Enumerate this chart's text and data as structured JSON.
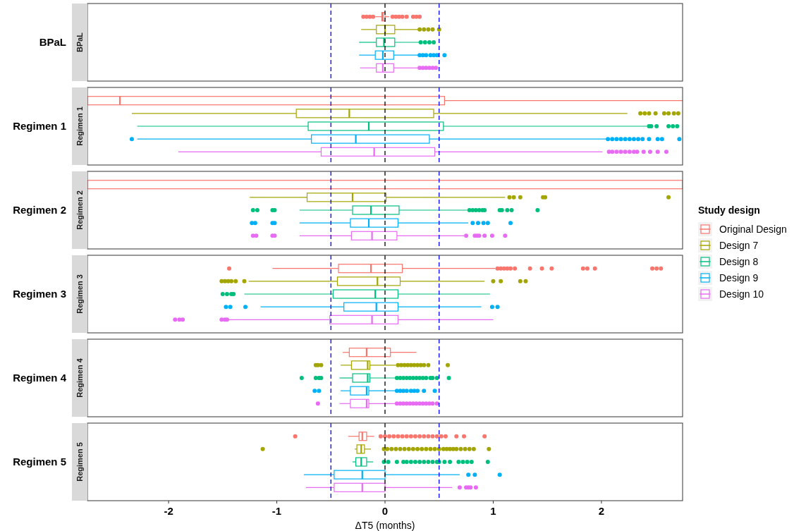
{
  "chart_data": [
    {
      "type": "box",
      "orientation": "horizontal",
      "title": "BPaL",
      "categories": [
        "BPaL"
      ],
      "xlim": [
        -2.75,
        2.75
      ],
      "tick_labels": "y",
      "grid": false,
      "ref_lines": [
        {
          "axis": "x",
          "value": -0.5,
          "color": "#0000ff",
          "line_style": "dashed"
        },
        {
          "axis": "x",
          "value": 0,
          "color": "#000000",
          "line_style": "dashed"
        },
        {
          "axis": "x",
          "value": 0.5,
          "color": "#0000ff",
          "line_style": "dashed"
        }
      ],
      "series": [
        {
          "color": "#f8766d",
          "boxes": [
            {
              "low": -0.09,
              "q1": -0.03,
              "median": -0.02,
              "q3": 0.0,
              "high": 0.04,
              "outliers": [
                -0.2,
                -0.17,
                -0.14,
                -0.11,
                0.07,
                0.1,
                0.13,
                0.16,
                0.2,
                0.26,
                0.29,
                0.32
              ]
            }
          ]
        },
        {
          "color": "#a3a500",
          "boxes": [
            {
              "low": -0.22,
              "q1": -0.08,
              "median": 0.0,
              "q3": 0.09,
              "high": 0.31,
              "outliers": [
                0.32,
                0.36,
                0.4,
                0.44,
                0.5
              ]
            }
          ]
        },
        {
          "color": "#00bf7d",
          "boxes": [
            {
              "low": -0.24,
              "q1": -0.08,
              "median": -0.01,
              "q3": 0.09,
              "high": 0.32,
              "outliers": [
                0.33,
                0.37,
                0.41,
                0.45
              ]
            }
          ]
        },
        {
          "color": "#00b0f6",
          "boxes": [
            {
              "low": -0.24,
              "q1": -0.09,
              "median": -0.02,
              "q3": 0.08,
              "high": 0.31,
              "outliers": [
                0.32,
                0.35,
                0.38,
                0.42,
                0.45,
                0.48,
                0.55
              ]
            }
          ]
        },
        {
          "color": "#e76bf3",
          "boxes": [
            {
              "low": -0.23,
              "q1": -0.08,
              "median": -0.02,
              "q3": 0.08,
              "high": 0.31,
              "outliers": [
                0.32,
                0.35,
                0.38,
                0.41,
                0.44,
                0.47
              ]
            }
          ]
        }
      ]
    },
    {
      "type": "box",
      "orientation": "horizontal",
      "title": "Regimen 1",
      "categories": [
        "Regimen 1"
      ],
      "xlim": [
        -2.75,
        2.75
      ],
      "tick_labels": "y",
      "grid": false,
      "ref_lines": [
        {
          "axis": "x",
          "value": -0.5,
          "color": "#0000ff",
          "line_style": "dashed"
        },
        {
          "axis": "x",
          "value": 0,
          "color": "#000000",
          "line_style": "dashed"
        },
        {
          "axis": "x",
          "value": 0.5,
          "color": "#0000ff",
          "line_style": "dashed"
        }
      ],
      "series": [
        {
          "color": "#f8766d",
          "boxes": [
            {
              "low": -2.75,
              "q1": -2.75,
              "median": -2.45,
              "q3": 0.55,
              "high": 2.75
            }
          ]
        },
        {
          "color": "#a3a500",
          "boxes": [
            {
              "low": -2.34,
              "q1": -0.82,
              "median": -0.33,
              "q3": 0.45,
              "high": 2.24,
              "outliers": [
                2.36,
                2.4,
                2.44,
                2.5,
                2.58,
                2.62,
                2.67,
                2.71
              ]
            }
          ]
        },
        {
          "color": "#00bf7d",
          "boxes": [
            {
              "low": -2.29,
              "q1": -0.71,
              "median": -0.15,
              "q3": 0.54,
              "high": 2.42,
              "outliers": [
                2.44,
                2.46,
                2.51,
                2.62,
                2.66,
                2.7
              ]
            }
          ]
        },
        {
          "color": "#00b0f6",
          "boxes": [
            {
              "low": -2.29,
              "q1": -0.68,
              "median": -0.27,
              "q3": 0.41,
              "high": 2.05,
              "outliers": [
                -2.34,
                2.06,
                2.1,
                2.14,
                2.18,
                2.22,
                2.26,
                2.3,
                2.34,
                2.38,
                2.44,
                2.52,
                2.56,
                2.72
              ]
            }
          ]
        },
        {
          "color": "#e76bf3",
          "boxes": [
            {
              "low": -1.91,
              "q1": -0.59,
              "median": -0.1,
              "q3": 0.46,
              "high": 2.01,
              "outliers": [
                2.07,
                2.1,
                2.14,
                2.18,
                2.22,
                2.26,
                2.3,
                2.33,
                2.39,
                2.45,
                2.52,
                2.6
              ]
            }
          ]
        }
      ]
    },
    {
      "type": "box",
      "orientation": "horizontal",
      "title": "Regimen 2",
      "categories": [
        "Regimen 2"
      ],
      "xlim": [
        -2.75,
        2.75
      ],
      "tick_labels": "y",
      "grid": false,
      "legend": "right",
      "legend_title": "Study design",
      "ref_lines": [
        {
          "axis": "x",
          "value": -0.5,
          "color": "#0000ff",
          "line_style": "dashed"
        },
        {
          "axis": "x",
          "value": 0,
          "color": "#000000",
          "line_style": "dashed"
        },
        {
          "axis": "x",
          "value": 0.5,
          "color": "#0000ff",
          "line_style": "dashed"
        }
      ],
      "series": [
        {
          "name": "Original Design",
          "color": "#f8766d",
          "boxes": [
            {
              "low": -2.75,
              "q1": -2.75,
              "median": null,
              "q3": 2.75,
              "high": 2.75
            }
          ]
        },
        {
          "name": "Design 7",
          "color": "#a3a500",
          "boxes": [
            {
              "low": -1.25,
              "q1": -0.72,
              "median": -0.3,
              "q3": 0.01,
              "high": 1.11,
              "outliers": [
                1.15,
                1.19,
                1.25,
                1.46,
                1.48,
                2.62
              ]
            }
          ]
        },
        {
          "name": "Design 8",
          "color": "#00bf7d",
          "boxes": [
            {
              "low": -0.79,
              "q1": -0.3,
              "median": -0.13,
              "q3": 0.13,
              "high": 0.76,
              "outliers": [
                -1.22,
                -1.18,
                -1.04,
                -1.02,
                0.78,
                0.81,
                0.84,
                0.87,
                0.9,
                0.92,
                1.06,
                1.08,
                1.13,
                1.17,
                1.41
              ]
            }
          ]
        },
        {
          "name": "Design 9",
          "color": "#00b0f6",
          "boxes": [
            {
              "low": -0.79,
              "q1": -0.32,
              "median": -0.15,
              "q3": 0.12,
              "high": 0.77,
              "outliers": [
                -1.23,
                -1.2,
                -1.04,
                -1.02,
                0.81,
                0.86,
                0.91,
                0.95,
                1.16
              ]
            }
          ]
        },
        {
          "name": "Design 10",
          "color": "#e76bf3",
          "boxes": [
            {
              "low": -0.79,
              "q1": -0.31,
              "median": -0.12,
              "q3": 0.11,
              "high": 0.73,
              "outliers": [
                -1.22,
                -1.19,
                -1.04,
                -1.02,
                0.75,
                0.83,
                0.85,
                0.87,
                0.92,
                0.99,
                1.11
              ]
            }
          ]
        }
      ]
    },
    {
      "type": "box",
      "orientation": "horizontal",
      "title": "Regimen 3",
      "categories": [
        "Regimen 3"
      ],
      "xlim": [
        -2.75,
        2.75
      ],
      "tick_labels": "y",
      "grid": false,
      "ref_lines": [
        {
          "axis": "x",
          "value": -0.5,
          "color": "#0000ff",
          "line_style": "dashed"
        },
        {
          "axis": "x",
          "value": 0,
          "color": "#000000",
          "line_style": "dashed"
        },
        {
          "axis": "x",
          "value": 0.5,
          "color": "#0000ff",
          "line_style": "dashed"
        }
      ],
      "series": [
        {
          "color": "#f8766d",
          "boxes": [
            {
              "low": -1.04,
              "q1": -0.43,
              "median": -0.13,
              "q3": 0.16,
              "high": 1.02,
              "outliers": [
                -1.44,
                1.04,
                1.07,
                1.1,
                1.13,
                1.16,
                1.2,
                1.34,
                1.45,
                1.54,
                1.83,
                1.87,
                1.94,
                2.47,
                2.51,
                2.55
              ]
            }
          ]
        },
        {
          "color": "#a3a500",
          "boxes": [
            {
              "low": -1.26,
              "q1": -0.44,
              "median": -0.07,
              "q3": 0.14,
              "high": 0.92,
              "outliers": [
                -1.51,
                -1.48,
                -1.45,
                -1.42,
                -1.38,
                -1.3,
                1.0,
                1.07,
                1.25,
                1.3
              ]
            }
          ]
        },
        {
          "color": "#00bf7d",
          "boxes": [
            {
              "low": -1.3,
              "q1": -0.48,
              "median": -0.09,
              "q3": 0.12,
              "high": 0.97,
              "outliers": [
                -1.5,
                -1.46,
                -1.42,
                -1.4
              ]
            }
          ]
        },
        {
          "color": "#00b0f6",
          "boxes": [
            {
              "low": -1.15,
              "q1": -0.38,
              "median": -0.08,
              "q3": 0.12,
              "high": 0.89,
              "outliers": [
                -1.47,
                -1.43,
                -1.29,
                0.99,
                1.04
              ]
            }
          ]
        },
        {
          "color": "#e76bf3",
          "boxes": [
            {
              "low": -1.45,
              "q1": -0.51,
              "median": -0.12,
              "q3": 0.12,
              "high": 1.0,
              "outliers": [
                -1.94,
                -1.9,
                -1.87,
                -1.51,
                -1.48,
                -1.46
              ]
            }
          ]
        }
      ]
    },
    {
      "type": "box",
      "orientation": "horizontal",
      "title": "Regimen 4",
      "categories": [
        "Regimen 4"
      ],
      "xlim": [
        -2.75,
        2.75
      ],
      "tick_labels": "y",
      "grid": false,
      "ref_lines": [
        {
          "axis": "x",
          "value": -0.5,
          "color": "#0000ff",
          "line_style": "dashed"
        },
        {
          "axis": "x",
          "value": 0,
          "color": "#000000",
          "line_style": "dashed"
        },
        {
          "axis": "x",
          "value": 0.5,
          "color": "#0000ff",
          "line_style": "dashed"
        }
      ],
      "series": [
        {
          "color": "#f8766d",
          "boxes": [
            {
              "low": -0.39,
              "q1": -0.33,
              "median": -0.17,
              "q3": 0.05,
              "high": 0.29
            }
          ]
        },
        {
          "color": "#a3a500",
          "boxes": [
            {
              "low": -0.41,
              "q1": -0.31,
              "median": -0.16,
              "q3": -0.14,
              "high": 0.1,
              "outliers": [
                -0.64,
                -0.62,
                -0.59,
                0.12,
                0.15,
                0.18,
                0.21,
                0.24,
                0.27,
                0.3,
                0.33,
                0.36,
                0.4,
                0.58
              ]
            }
          ]
        },
        {
          "color": "#00bf7d",
          "boxes": [
            {
              "low": -0.42,
              "q1": -0.3,
              "median": -0.16,
              "q3": -0.14,
              "high": 0.09,
              "outliers": [
                -0.77,
                -0.64,
                -0.61,
                -0.59,
                0.11,
                0.14,
                0.17,
                0.2,
                0.23,
                0.26,
                0.29,
                0.32,
                0.35,
                0.38,
                0.42,
                0.44,
                0.48,
                0.59
              ]
            }
          ]
        },
        {
          "color": "#00b0f6",
          "boxes": [
            {
              "low": -0.41,
              "q1": -0.32,
              "median": -0.17,
              "q3": -0.15,
              "high": 0.09,
              "outliers": [
                -0.65,
                -0.61,
                0.11,
                0.14,
                0.17,
                0.2,
                0.24,
                0.27,
                0.3,
                0.36,
                0.46
              ]
            }
          ]
        },
        {
          "color": "#e76bf3",
          "boxes": [
            {
              "low": -0.42,
              "q1": -0.32,
              "median": -0.17,
              "q3": -0.15,
              "high": 0.09,
              "outliers": [
                -0.62,
                0.11,
                0.14,
                0.17,
                0.2,
                0.23,
                0.26,
                0.29,
                0.32,
                0.35,
                0.38,
                0.41,
                0.44,
                0.48
              ]
            }
          ]
        }
      ]
    },
    {
      "type": "box",
      "orientation": "horizontal",
      "title": "Regimen 5",
      "categories": [
        "Regimen 5"
      ],
      "xlim": [
        -2.75,
        2.75
      ],
      "xticks": [
        -2,
        -1,
        0,
        1,
        2
      ],
      "xlabel": "ΔT5 (months)",
      "grid": false,
      "ref_lines": [
        {
          "axis": "x",
          "value": -0.5,
          "color": "#0000ff",
          "line_style": "dashed"
        },
        {
          "axis": "x",
          "value": 0,
          "color": "#000000",
          "line_style": "dashed"
        },
        {
          "axis": "x",
          "value": 0.5,
          "color": "#0000ff",
          "line_style": "dashed"
        }
      ],
      "series": [
        {
          "color": "#f8766d",
          "boxes": [
            {
              "low": -0.34,
              "q1": -0.24,
              "median": -0.21,
              "q3": -0.17,
              "high": -0.1,
              "outliers": [
                -0.83,
                -0.04,
                0.0,
                0.04,
                0.08,
                0.12,
                0.16,
                0.2,
                0.24,
                0.28,
                0.32,
                0.36,
                0.4,
                0.44,
                0.48,
                0.52,
                0.56,
                0.66,
                0.73,
                0.92
              ]
            }
          ]
        },
        {
          "color": "#a3a500",
          "boxes": [
            {
              "low": -0.28,
              "q1": -0.26,
              "median": -0.22,
              "q3": -0.19,
              "high": -0.13,
              "outliers": [
                -1.13,
                -0.01,
                0.02,
                0.06,
                0.1,
                0.14,
                0.18,
                0.22,
                0.26,
                0.3,
                0.34,
                0.38,
                0.42,
                0.46,
                0.5,
                0.54,
                0.57,
                0.6,
                0.63,
                0.66,
                0.7,
                0.74,
                0.78,
                0.82,
                0.96
              ]
            }
          ]
        },
        {
          "color": "#00bf7d",
          "boxes": [
            {
              "low": -0.3,
              "q1": -0.27,
              "median": -0.22,
              "q3": -0.17,
              "high": -0.11,
              "outliers": [
                -0.01,
                0.03,
                0.11,
                0.17,
                0.2,
                0.24,
                0.28,
                0.32,
                0.36,
                0.4,
                0.44,
                0.48,
                0.5,
                0.55,
                0.6,
                0.68,
                0.72,
                0.76,
                0.8,
                0.95
              ]
            }
          ]
        },
        {
          "color": "#00b0f6",
          "boxes": [
            {
              "low": -0.75,
              "q1": -0.47,
              "median": -0.21,
              "q3": 0.0,
              "high": 0.69,
              "outliers": [
                0.77,
                0.83,
                1.06
              ]
            }
          ]
        },
        {
          "color": "#e76bf3",
          "boxes": [
            {
              "low": -0.73,
              "q1": -0.47,
              "median": -0.21,
              "q3": 0.0,
              "high": 0.62,
              "outliers": [
                0.69,
                0.75,
                0.77,
                0.79,
                0.84
              ]
            }
          ]
        }
      ]
    }
  ]
}
